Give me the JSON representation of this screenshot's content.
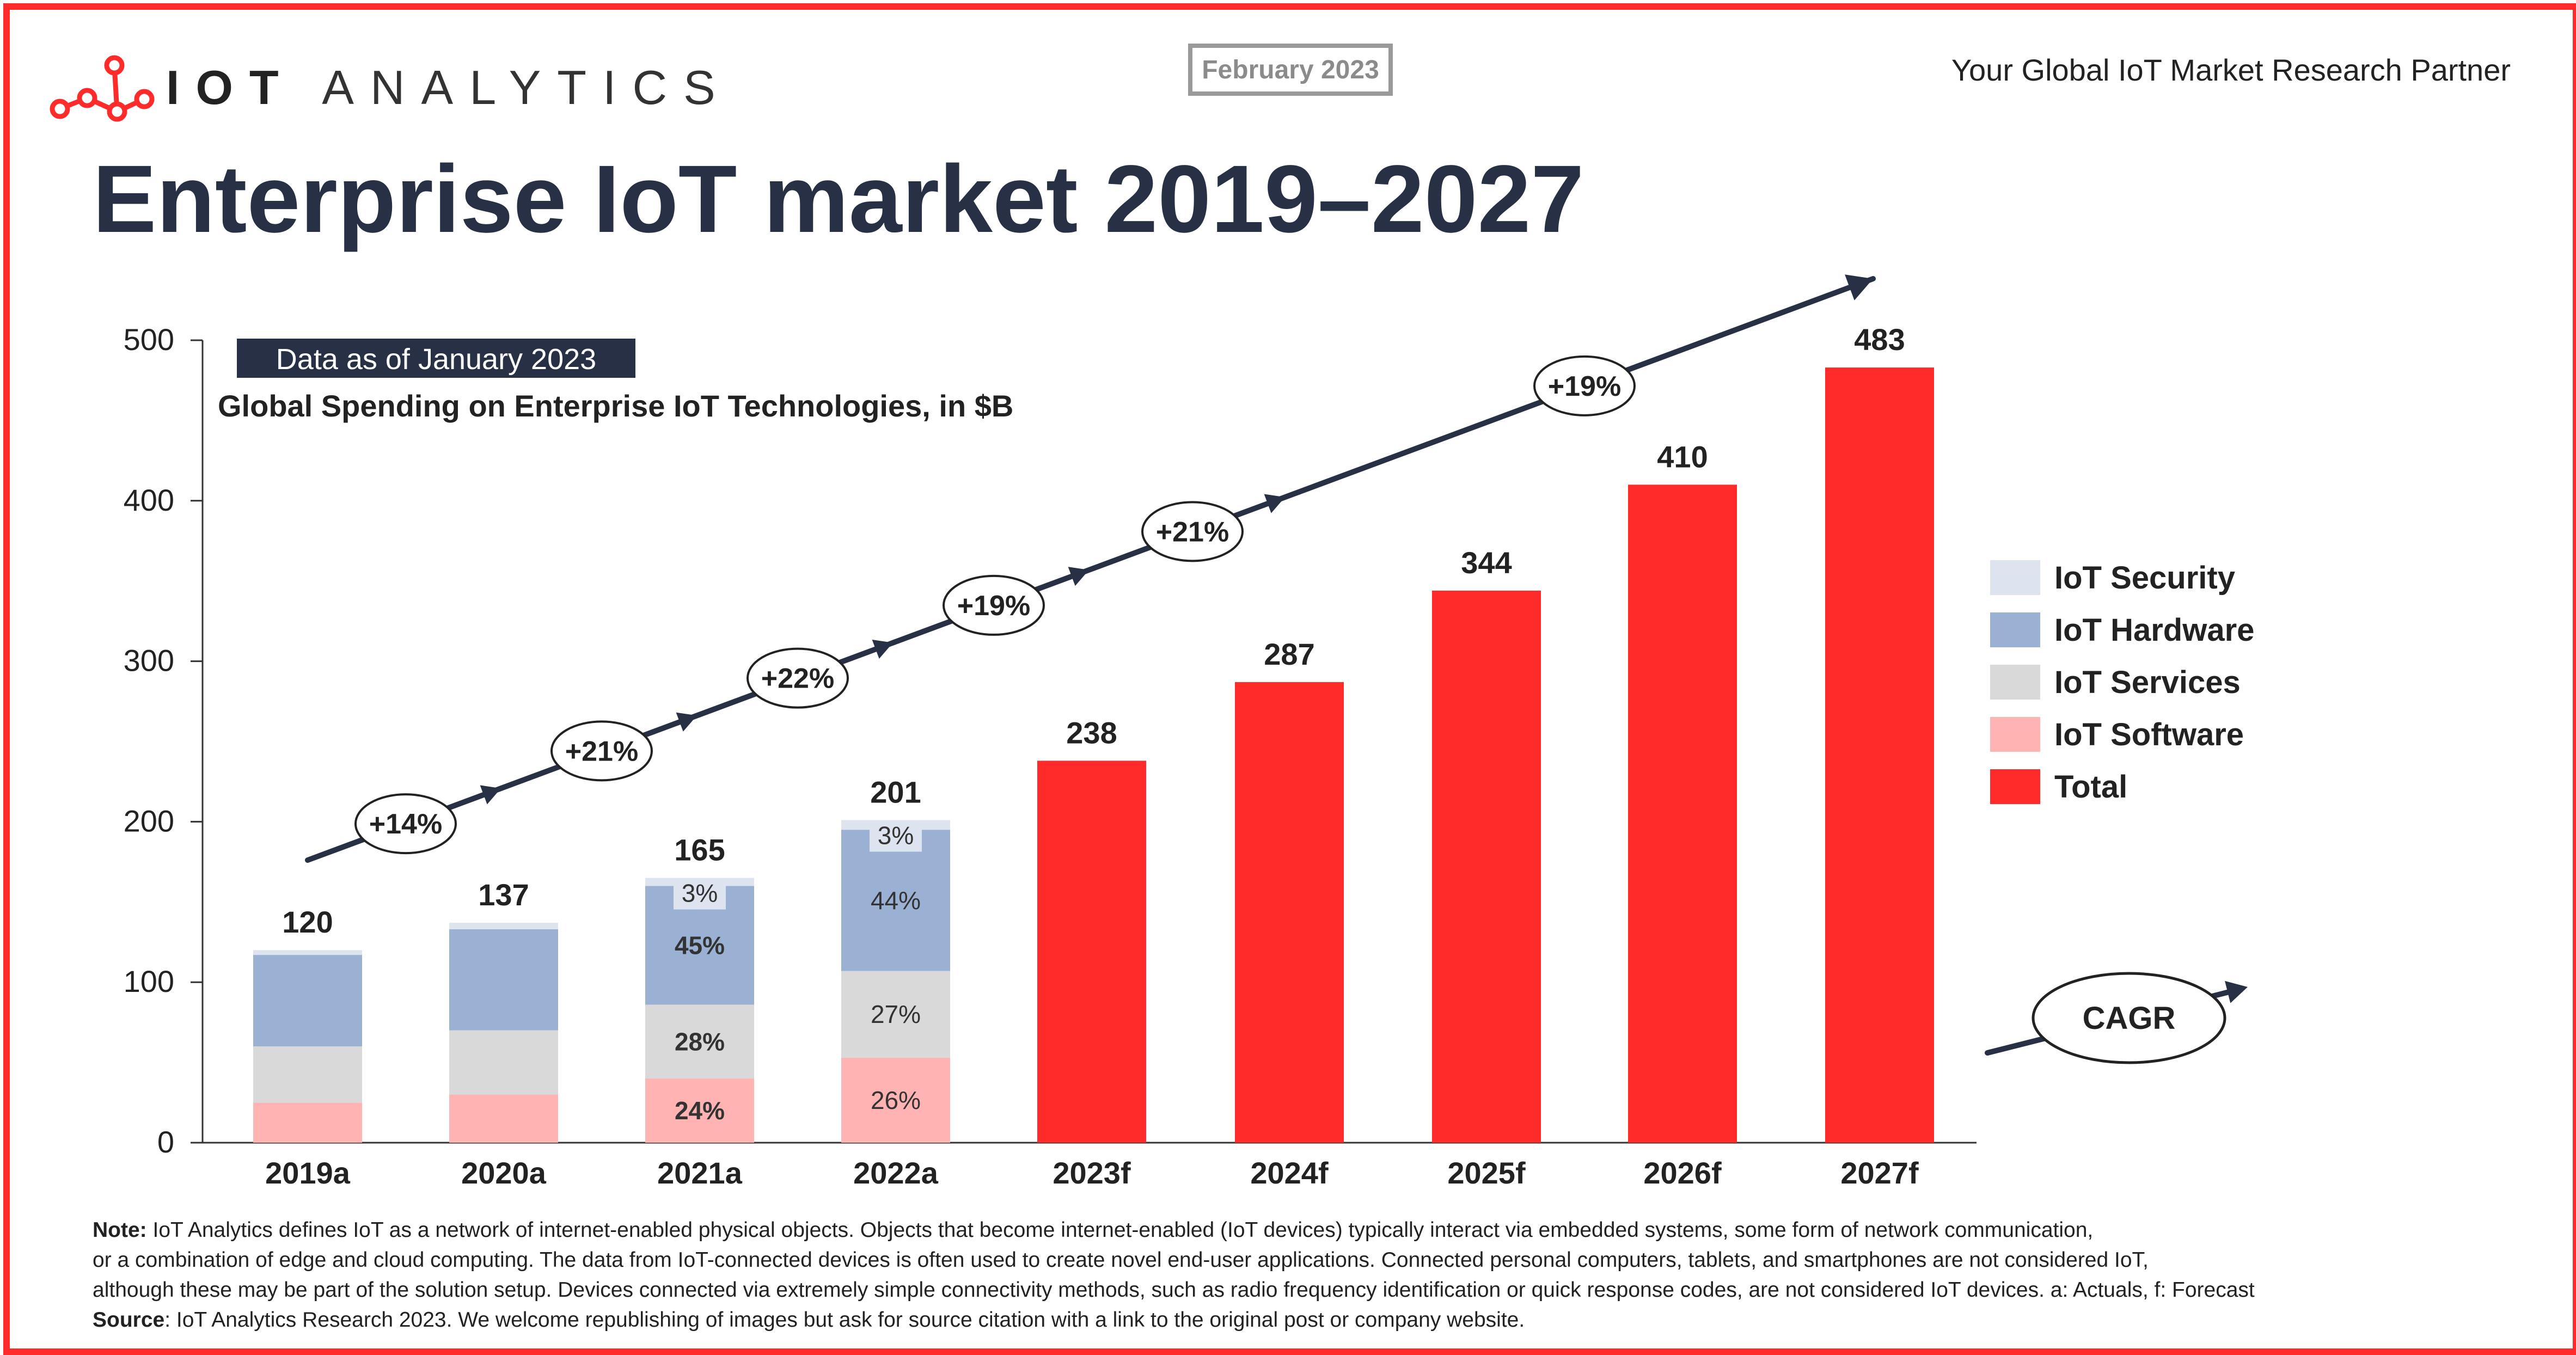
{
  "header": {
    "brand_bold": "IOT",
    "brand_rest": "ANALYTICS",
    "date_badge": "February 2023",
    "tagline": "Your Global IoT Market Research Partner",
    "title": "Enterprise IoT market 2019–2027"
  },
  "legend": [
    {
      "label": "IoT Security",
      "color": "#dde3ef"
    },
    {
      "label": "IoT Hardware",
      "color": "#9bb1d4"
    },
    {
      "label": "IoT Services",
      "color": "#d9d9d9"
    },
    {
      "label": "IoT Software",
      "color": "#ffb3b3"
    },
    {
      "label": "Total",
      "color": "#ff2b2b"
    }
  ],
  "notes": {
    "note_label": "Note:",
    "note_line1": "IoT Analytics defines IoT as a network of internet-enabled physical objects. Objects that become internet-enabled (IoT devices) typically interact via embedded systems, some form of network communication,",
    "note_line2": "or a combination of edge and cloud computing. The data from IoT-connected devices is often used to create novel end-user applications. Connected personal computers, tablets, and smartphones are not considered IoT,",
    "note_line3": "although these may be part of the solution setup. Devices connected via extremely simple connectivity methods, such as radio frequency identification or quick response codes, are not considered IoT devices. a: Actuals, f: Forecast",
    "source_label": "Source",
    "source_text": ": IoT Analytics Research 2023. We welcome republishing of images but ask for source citation with a link to the original post or company website."
  },
  "chart_data": {
    "type": "bar",
    "title": "Global Spending on Enterprise IoT Technologies, in $B",
    "data_badge": "Data as of January 2023",
    "ylim": [
      0,
      500
    ],
    "yticks": [
      0,
      100,
      200,
      300,
      400,
      500
    ],
    "categories": [
      "2019a",
      "2020a",
      "2021a",
      "2022a",
      "2023f",
      "2024f",
      "2025f",
      "2026f",
      "2027f"
    ],
    "totals": [
      120,
      137,
      165,
      201,
      238,
      287,
      344,
      410,
      483
    ],
    "series": [
      {
        "name": "IoT Software",
        "color": "#ffb3b3",
        "values": [
          25,
          30,
          40,
          53,
          null,
          null,
          null,
          null,
          null
        ]
      },
      {
        "name": "IoT Services",
        "color": "#d9d9d9",
        "values": [
          35,
          40,
          46,
          54,
          null,
          null,
          null,
          null,
          null
        ]
      },
      {
        "name": "IoT Hardware",
        "color": "#9bb1d4",
        "values": [
          57,
          63,
          74,
          88,
          null,
          null,
          null,
          null,
          null
        ]
      },
      {
        "name": "IoT Security",
        "color": "#dde3ef",
        "values": [
          3,
          4,
          5,
          6,
          null,
          null,
          null,
          null,
          null
        ]
      },
      {
        "name": "Total",
        "color": "#ff2b2b",
        "values": [
          null,
          null,
          null,
          null,
          238,
          287,
          344,
          410,
          483
        ]
      }
    ],
    "segment_labels": {
      "2021a": {
        "IoT Software": "24%",
        "IoT Services": "28%",
        "IoT Hardware": "45%",
        "IoT Security": "3%"
      },
      "2022a": {
        "IoT Software": "26%",
        "IoT Services": "27%",
        "IoT Hardware": "44%",
        "IoT Security": "3%"
      }
    },
    "growth_labels": [
      "+14%",
      "+21%",
      "+22%",
      "+19%",
      "+21%",
      "+19%"
    ],
    "cagr_label": "CAGR"
  }
}
